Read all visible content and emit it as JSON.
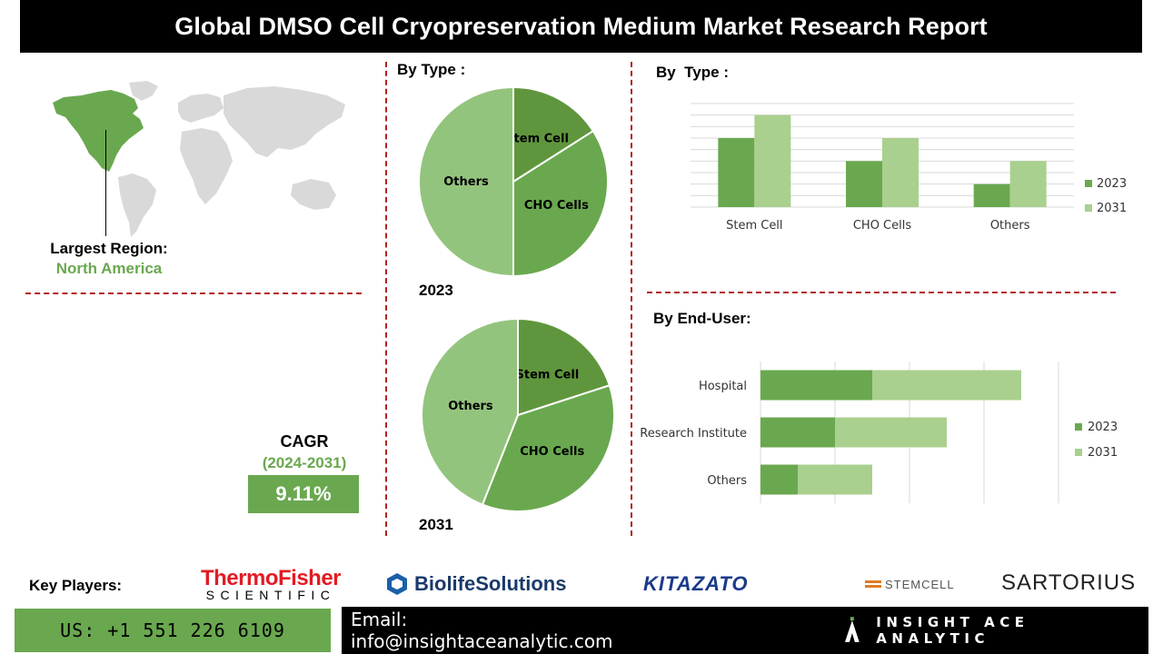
{
  "header": {
    "title": "Global DMSO Cell Cryopreservation Medium Market Research Report"
  },
  "region": {
    "label": "Largest Region:",
    "value": "North America"
  },
  "cagr": {
    "title": "CAGR",
    "period": "(2024-2031)",
    "value": "9.11%"
  },
  "colors": {
    "dark_green": "#5f963d",
    "mid_green": "#6aa84f",
    "light_green": "#93c47d",
    "pale_green": "#a9d08e",
    "map_grey": "#d9d9d9",
    "divider_red": "#b22222"
  },
  "chart_data": [
    {
      "type": "pie",
      "section_label": "By Type :",
      "year_label": "2023",
      "labels": [
        "Stem Cell",
        "CHO Cells",
        "Others"
      ],
      "values": [
        16,
        34,
        50
      ]
    },
    {
      "type": "pie",
      "year_label": "2031",
      "labels": [
        "Stem Cell",
        "CHO Cells",
        "Others"
      ],
      "values": [
        20,
        36,
        44
      ]
    },
    {
      "type": "bar",
      "section_label": "By  Type :",
      "categories": [
        "Stem Cell",
        "CHO Cells",
        "Others"
      ],
      "series": [
        {
          "name": "2023",
          "values": [
            3,
            2,
            1
          ]
        },
        {
          "name": "2031",
          "values": [
            4,
            3,
            2
          ]
        }
      ],
      "ylim": [
        0,
        4.5
      ],
      "grid": true,
      "legend": "right"
    },
    {
      "type": "bar",
      "orientation": "horizontal",
      "stacked": true,
      "section_label": "By End-User:",
      "categories": [
        "Hospital",
        "Research Institute",
        "Others"
      ],
      "series": [
        {
          "name": "2023",
          "values": [
            3,
            2,
            1
          ]
        },
        {
          "name": "2031",
          "values": [
            4,
            3,
            2
          ]
        }
      ],
      "xlim": [
        0,
        8
      ],
      "grid": true,
      "legend": "right"
    }
  ],
  "key_players": {
    "label": "Key Players:",
    "thermo_line1": "ThermoFisher",
    "thermo_line2": "SCIENTIFIC",
    "biolife": "BiolifeSolutions",
    "kitazato": "KITAZATO",
    "stemcell": "STEMCELL",
    "sartorius": "SARTORIUS"
  },
  "footer": {
    "phone": "US: +1 551 226 6109",
    "email": "Email: info@insightaceanalytic.com",
    "brand": "INSIGHT ACE ANALYTIC"
  }
}
